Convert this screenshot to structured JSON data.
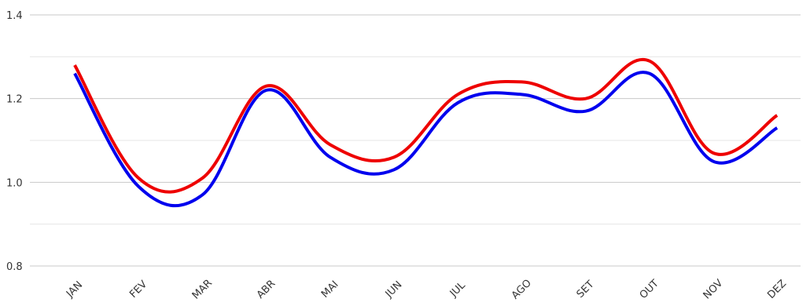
{
  "chart_data": {
    "type": "line",
    "title": "",
    "xlabel": "",
    "ylabel": "",
    "categories": [
      "JAN",
      "FEV",
      "MAR",
      "ABR",
      "MAI",
      "JUN",
      "JUL",
      "AGO",
      "SET",
      "OUT",
      "NOV",
      "DEZ"
    ],
    "ylim": [
      0.8,
      1.4
    ],
    "yticks": [
      "0.8",
      "1.0",
      "1.2",
      "1.4"
    ],
    "grid": true,
    "legend": "none",
    "series": [
      {
        "color": "#0000ee",
        "values": [
          1.26,
          0.99,
          0.97,
          1.22,
          1.06,
          1.03,
          1.19,
          1.21,
          1.17,
          1.26,
          1.05,
          1.13
        ]
      },
      {
        "color": "#ee0000",
        "values": [
          1.28,
          1.01,
          1.01,
          1.23,
          1.09,
          1.06,
          1.21,
          1.24,
          1.2,
          1.29,
          1.07,
          1.16
        ]
      }
    ]
  }
}
